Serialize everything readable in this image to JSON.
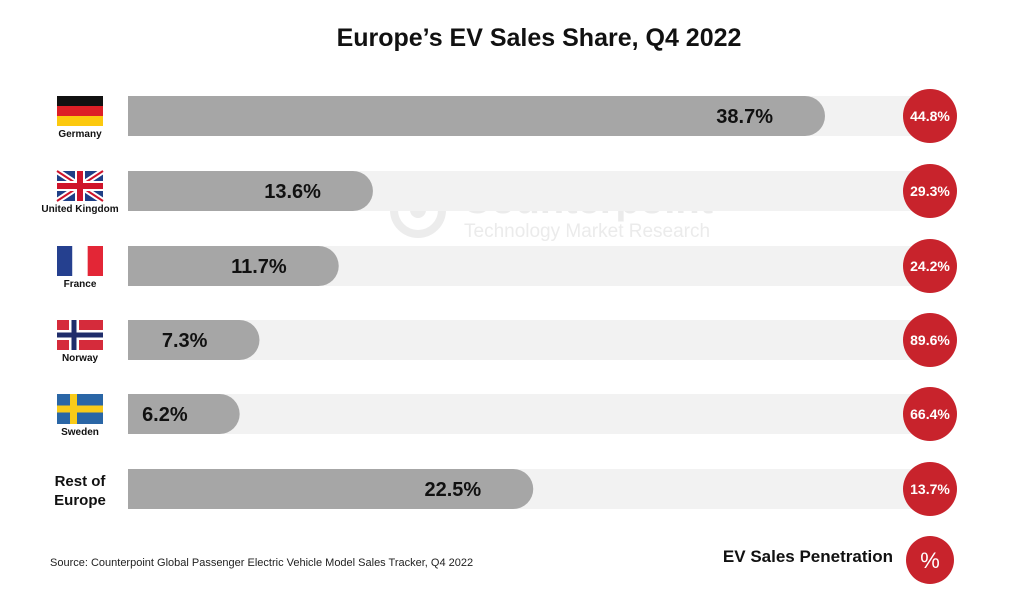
{
  "chart_data": {
    "type": "bar",
    "orientation": "horizontal",
    "title": "Europe’s EV Sales Share, Q4 2022",
    "categories": [
      "Germany",
      "United Kingdom",
      "France",
      "Norway",
      "Sweden",
      "Rest of Europe"
    ],
    "values": [
      38.7,
      13.6,
      11.7,
      7.3,
      6.2,
      22.5
    ],
    "value_labels": [
      "38.7%",
      "13.6%",
      "11.7%",
      "7.3%",
      "6.2%",
      "22.5%"
    ],
    "penetration": {
      "values": [
        44.8,
        29.3,
        24.2,
        89.6,
        66.4,
        13.7
      ],
      "labels": [
        "44.8%",
        "29.3%",
        "24.2%",
        "89.6%",
        "66.4%",
        "13.7%"
      ]
    },
    "xlim": [
      0,
      50
    ],
    "grid": false,
    "legend": {
      "label": "EV Sales Penetration",
      "symbol": "%",
      "placement": "bottom-right"
    },
    "source": "Source: Counterpoint Global Passenger Electric Vehicle Model Sales Tracker, Q4 2022",
    "watermark": {
      "name": "Counterpoint",
      "tagline": "Technology Market Research"
    }
  },
  "flags": [
    "germany-flag",
    "uk-flag",
    "france-flag",
    "norway-flag",
    "sweden-flag",
    "none"
  ],
  "colors": {
    "bar": "#a6a6a6",
    "track": "#f2f2f2",
    "penetration": "#c8232c",
    "text": "#111111",
    "watermark": "#ebebeb"
  }
}
